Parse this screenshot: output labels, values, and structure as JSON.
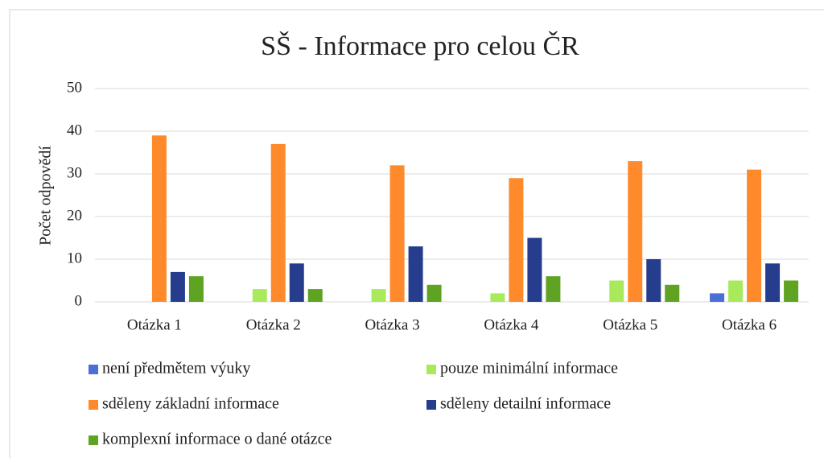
{
  "chart_data": {
    "type": "bar",
    "title": "SŠ - Informace pro celou ČR",
    "ylabel": "Počet odpovědí",
    "categories": [
      "Otázka 1",
      "Otázka 2",
      "Otázka 3",
      "Otázka 4",
      "Otázka 5",
      "Otázka 6"
    ],
    "series": [
      {
        "name": "není předmětem výuky",
        "color": "#4a6fd6",
        "values": [
          0,
          0,
          0,
          0,
          0,
          2
        ]
      },
      {
        "name": "pouze minimální informace",
        "color": "#a9ea5c",
        "values": [
          0,
          3,
          3,
          2,
          5,
          5
        ]
      },
      {
        "name": "sděleny základní informace",
        "color": "#ff8a2b",
        "values": [
          39,
          37,
          32,
          29,
          33,
          31
        ]
      },
      {
        "name": "sděleny detailní informace",
        "color": "#263c8c",
        "values": [
          7,
          9,
          13,
          15,
          10,
          9
        ]
      },
      {
        "name": "komplexní informace o dané otázce",
        "color": "#5ea321",
        "values": [
          6,
          3,
          4,
          6,
          4,
          5
        ]
      }
    ],
    "ylim": [
      0,
      50
    ],
    "yticks": [
      0,
      10,
      20,
      30,
      40,
      50
    ],
    "grid": true,
    "legend": "bottom"
  }
}
